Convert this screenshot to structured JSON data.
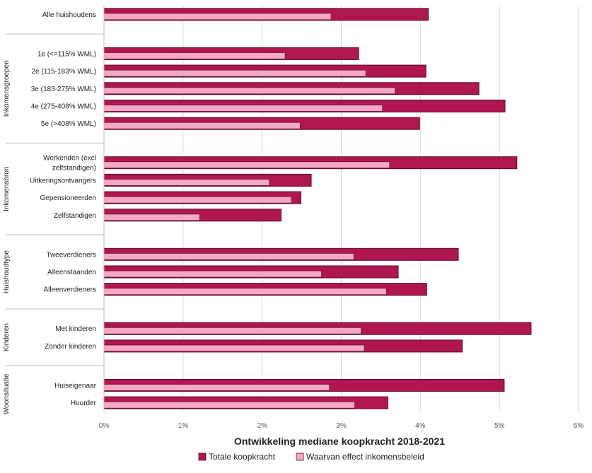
{
  "chart_data": {
    "type": "bar",
    "orientation": "horizontal",
    "xlabel": "Ontwikkeling mediane koopkracht 2018-2021",
    "xlim": [
      0,
      6
    ],
    "xticks": [
      "0%",
      "1%",
      "2%",
      "3%",
      "4%",
      "5%",
      "6%"
    ],
    "grid": true,
    "legend_position": "bottom",
    "colors": {
      "total": "#b0164f",
      "policy": "#f4a8c6",
      "outline": "#5a0a26",
      "grid": "#d9d9d9",
      "divider": "#bbbbbb"
    },
    "series": [
      {
        "key": "total",
        "name": "Totale koopkracht"
      },
      {
        "key": "policy",
        "name": "Waarvan effect inkomensbeleid"
      }
    ],
    "groups": [
      {
        "label": "",
        "categories": [
          {
            "label": [
              "Alle huishoudens"
            ],
            "total": 4.1,
            "policy": 2.87
          }
        ]
      },
      {
        "label": "Inkomensgroepen",
        "categories": [
          {
            "label": [
              "1e (<=115% WML)"
            ],
            "total": 3.22,
            "policy": 2.29
          },
          {
            "label": [
              "2e (115-183% WML)"
            ],
            "total": 4.07,
            "policy": 3.31
          },
          {
            "label": [
              "3e (183-275% WML)"
            ],
            "total": 4.74,
            "policy": 3.68
          },
          {
            "label": [
              "4e (275-408% WML)"
            ],
            "total": 5.07,
            "policy": 3.52
          },
          {
            "label": [
              "5e (>408% WML)"
            ],
            "total": 3.99,
            "policy": 2.48
          }
        ]
      },
      {
        "label": "Inkomensbron",
        "categories": [
          {
            "label": [
              "Werkenden (excl",
              "zelfstandigen)"
            ],
            "total": 5.22,
            "policy": 3.61
          },
          {
            "label": [
              "Uitkeringsontvangers"
            ],
            "total": 2.62,
            "policy": 2.09
          },
          {
            "label": [
              "Gepensioneerden"
            ],
            "total": 2.49,
            "policy": 2.37
          },
          {
            "label": [
              "Zelfstandigen"
            ],
            "total": 2.24,
            "policy": 1.21
          }
        ]
      },
      {
        "label": "Huishoudtype",
        "categories": [
          {
            "label": [
              "Tweeverdieners"
            ],
            "total": 4.48,
            "policy": 3.16
          },
          {
            "label": [
              "Alleenstaanden"
            ],
            "total": 3.72,
            "policy": 2.75
          },
          {
            "label": [
              "Alleenverdieners"
            ],
            "total": 4.08,
            "policy": 3.57
          }
        ]
      },
      {
        "label": "Kinderen",
        "categories": [
          {
            "label": [
              "Met kinderen"
            ],
            "total": 5.4,
            "policy": 3.25
          },
          {
            "label": [
              "Zonder kinderen"
            ],
            "total": 4.53,
            "policy": 3.29
          }
        ]
      },
      {
        "label": "Woonsituatie",
        "categories": [
          {
            "label": [
              "Huiseigenaar"
            ],
            "total": 5.06,
            "policy": 2.85
          },
          {
            "label": [
              "Huurder"
            ],
            "total": 3.59,
            "policy": 3.17
          }
        ]
      }
    ]
  }
}
